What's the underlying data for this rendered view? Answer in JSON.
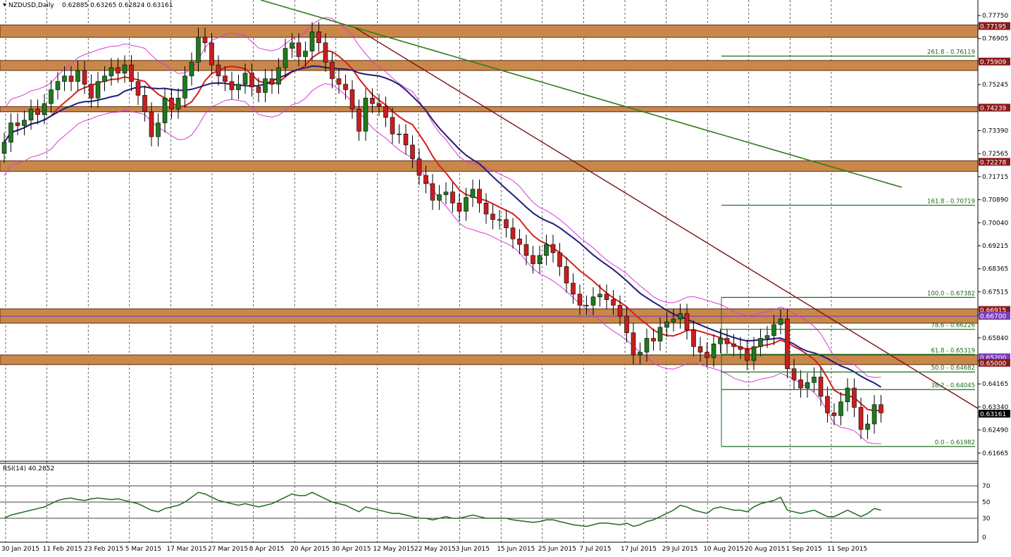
{
  "chart_data": {
    "type": "candlestick",
    "title": "NZDUSD,Daily",
    "ohlc_header": "0.62885 0.63265 0.62824 0.63161",
    "last_price": "0.63161",
    "y_tick_labels": [
      "0.77750",
      "0.76905",
      "0.76075",
      "0.75245",
      "0.74415",
      "0.73390",
      "0.72565",
      "0.71715",
      "0.70890",
      "0.70040",
      "0.69215",
      "0.68365",
      "0.67515",
      "0.66690",
      "0.65840",
      "0.64990",
      "0.64165",
      "0.63340",
      "0.62490",
      "0.61665"
    ],
    "x_tick_labels": [
      "30 Jan 2015",
      "11 Feb 2015",
      "23 Feb 2015",
      "5 Mar 2015",
      "17 Mar 2015",
      "27 Mar 2015",
      "8 Apr 2015",
      "20 Apr 2015",
      "30 Apr 2015",
      "12 May 2015",
      "22 May 2015",
      "3 Jun 2015",
      "15 Jun 2015",
      "25 Jun 2015",
      "7 Jul 2015",
      "17 Jul 2015",
      "29 Jul 2015",
      "10 Aug 2015",
      "20 Aug 2015",
      "1 Sep 2015",
      "11 Sep 2015"
    ],
    "close_series": [
      0.73,
      0.737,
      0.736,
      0.738,
      0.742,
      0.74,
      0.744,
      0.749,
      0.752,
      0.754,
      0.752,
      0.756,
      0.751,
      0.746,
      0.752,
      0.754,
      0.757,
      0.755,
      0.758,
      0.752,
      0.747,
      0.741,
      0.732,
      0.737,
      0.746,
      0.742,
      0.746,
      0.754,
      0.759,
      0.768,
      0.766,
      0.758,
      0.754,
      0.752,
      0.749,
      0.751,
      0.755,
      0.75,
      0.748,
      0.753,
      0.751,
      0.757,
      0.764,
      0.766,
      0.761,
      0.763,
      0.77,
      0.766,
      0.759,
      0.753,
      0.751,
      0.749,
      0.742,
      0.734,
      0.746,
      0.744,
      0.743,
      0.739,
      0.733,
      0.733,
      0.729,
      0.724,
      0.718,
      0.715,
      0.709,
      0.711,
      0.712,
      0.708,
      0.705,
      0.71,
      0.713,
      0.708,
      0.704,
      0.702,
      0.702,
      0.699,
      0.695,
      0.693,
      0.689,
      0.686,
      0.689,
      0.693,
      0.69,
      0.685,
      0.679,
      0.675,
      0.671,
      0.671,
      0.674,
      0.675,
      0.673,
      0.671,
      0.667,
      0.661,
      0.653,
      0.654,
      0.659,
      0.658,
      0.663,
      0.665,
      0.666,
      0.668,
      0.662,
      0.656,
      0.654,
      0.652,
      0.657,
      0.659,
      0.657,
      0.656,
      0.655,
      0.651,
      0.656,
      0.659,
      0.66,
      0.664,
      0.666,
      0.648,
      0.644,
      0.641,
      0.643,
      0.645,
      0.638,
      0.632,
      0.631,
      0.636,
      0.641,
      0.634,
      0.626,
      0.628,
      0.635,
      0.632
    ],
    "horizontal_levels": [
      {
        "label": "0.77195",
        "value": 0.77195,
        "type": "zone",
        "pair": "0.76849"
      },
      {
        "label": "0.75909",
        "value": 0.75909,
        "type": "zone",
        "pair": "0.75650"
      },
      {
        "label": "0.74239",
        "value": 0.74239,
        "type": "zone",
        "pair": "0.74153"
      },
      {
        "label": "0.72278",
        "value": 0.72278,
        "type": "zone",
        "pair": "0.71997"
      },
      {
        "label": "0.66915",
        "value": 0.66915,
        "type": "zone",
        "pair": "0.66500"
      },
      {
        "label": "0.66700",
        "value": 0.667,
        "type": "purple"
      },
      {
        "label": "0.65200",
        "value": 0.652,
        "type": "purple"
      },
      {
        "label": "0.65000",
        "value": 0.65,
        "type": "zone",
        "pair": "0.65247"
      }
    ],
    "fibonacci": [
      {
        "label": "261.8 - 0.76119",
        "value": 0.76119
      },
      {
        "label": "161.8 - 0.70719",
        "value": 0.70719
      },
      {
        "label": "100.0 - 0.67382",
        "value": 0.67382
      },
      {
        "label": "78.6 - 0.66226",
        "value": 0.66226
      },
      {
        "label": "61.8 - 0.65319",
        "value": 0.65319
      },
      {
        "label": "50.0 - 0.64682",
        "value": 0.64682
      },
      {
        "label": "38.2 - 0.64045",
        "value": 0.64045
      },
      {
        "label": "0.0 - 0.61982",
        "value": 0.61982
      }
    ],
    "ylim": [
      0.6145,
      0.7815
    ],
    "rsi": {
      "label": "RSI(14) 40.2852",
      "levels": [
        "70",
        "50",
        "30",
        "0"
      ],
      "values": [
        30,
        34,
        36,
        38,
        40,
        42,
        44,
        48,
        52,
        54,
        55,
        53,
        52,
        54,
        55,
        54,
        53,
        54,
        52,
        50,
        48,
        44,
        40,
        38,
        42,
        44,
        46,
        50,
        56,
        62,
        60,
        56,
        52,
        50,
        48,
        46,
        48,
        46,
        44,
        46,
        48,
        52,
        56,
        60,
        58,
        58,
        62,
        58,
        54,
        50,
        48,
        46,
        42,
        38,
        44,
        42,
        40,
        38,
        36,
        36,
        34,
        32,
        30,
        30,
        28,
        30,
        32,
        30,
        30,
        32,
        34,
        32,
        30,
        30,
        30,
        30,
        28,
        27,
        26,
        25,
        26,
        28,
        28,
        26,
        24,
        22,
        21,
        20,
        22,
        24,
        24,
        23,
        22,
        24,
        20,
        22,
        26,
        28,
        32,
        36,
        40,
        46,
        44,
        40,
        38,
        36,
        42,
        44,
        42,
        40,
        40,
        38,
        44,
        48,
        50,
        52,
        56,
        40,
        38,
        36,
        38,
        40,
        36,
        32,
        32,
        36,
        40,
        36,
        32,
        36,
        42,
        40
      ]
    }
  }
}
